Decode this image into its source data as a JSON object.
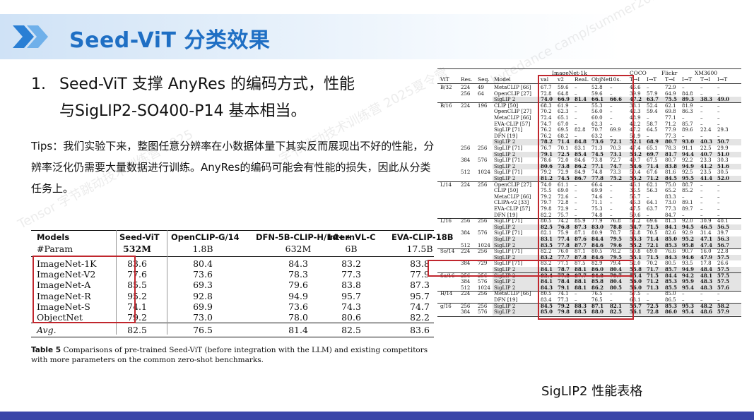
{
  "title": "Seed-ViT 分类效果",
  "watermarks": [
    "bytedance camp/summer2025",
    "字节跳动技术训练营 2025夏令营",
    "Tensor 字节跳动技术训练营 2025"
  ],
  "point": {
    "number": "1.",
    "line1": "Seed-ViT 支撑 AnyRes 的编码方式，性能",
    "line2": "与SigLIP2-SO400-P14 基本相当。"
  },
  "tips": "Tips：我们实验下来，整图任意分辨率在小数据体量下其实反而展现出不好的性能，分辨率泛化仍需要大量数据进行训练。AnyRes的编码可能会有性能的损失，因此从分类任务上。",
  "left_table": {
    "headers": [
      "Models",
      "Seed-ViT",
      "OpenCLIP-G/14",
      "DFN-5B-CLIP-H/14++",
      "InternVL-C",
      "EVA-CLIP-18B"
    ],
    "param_label": "#Param",
    "params": [
      "532M",
      "1.8B",
      "632M",
      "6B",
      "17.5B"
    ],
    "rows": [
      {
        "name": "ImageNet-1K",
        "values": [
          "83.6",
          "80.4",
          "84.3",
          "83.2",
          "83.8"
        ]
      },
      {
        "name": "ImageNet-V2",
        "values": [
          "77.6",
          "73.6",
          "78.3",
          "77.3",
          "77.9"
        ]
      },
      {
        "name": "ImageNet-A",
        "values": [
          "85.5",
          "69.3",
          "79.6",
          "83.8",
          "87.3"
        ]
      },
      {
        "name": "ImageNet-R",
        "values": [
          "95.2",
          "92.8",
          "94.9",
          "95.7",
          "95.7"
        ]
      },
      {
        "name": "ImageNet-S",
        "values": [
          "74.1",
          "69.9",
          "73.6",
          "74.3",
          "74.7"
        ]
      },
      {
        "name": "ObjectNet",
        "values": [
          "79.2",
          "73.0",
          "78.0",
          "80.6",
          "82.2"
        ]
      }
    ],
    "avg": {
      "name": "Avg.",
      "values": [
        "82.5",
        "76.5",
        "81.4",
        "82.5",
        "83.6"
      ]
    },
    "caption_label": "Table 5",
    "caption_text": "Comparisons of pre-trained Seed-ViT (before integration with the LLM) and existing competitors with more parameters on the common zero-shot benchmarks."
  },
  "right_table": {
    "group_headers": [
      "ImageNet-1k",
      "COCO",
      "Flickr",
      "XM3600"
    ],
    "headers": [
      "ViT",
      "Res.",
      "Seq.",
      "Model",
      "val",
      "v2",
      "ReaL",
      "ObjNet",
      "10s.",
      "T→I",
      "I→T",
      "T→I",
      "I→T",
      "T→I",
      "I→T"
    ],
    "rows": [
      [
        "B/32",
        "224",
        "49",
        "MetaCLIP [66]",
        "67.7",
        "59.6",
        "–",
        "52.8",
        "–",
        "46.6",
        "–",
        "72.9",
        "–",
        "–",
        "–"
      ],
      [
        "",
        "256",
        "64",
        "OpenCLIP [27]",
        "72.8",
        "64.8",
        "–",
        "59.6",
        "–",
        "39.9",
        "57.9",
        "64.9",
        "84.8",
        "–",
        "–"
      ],
      [
        "",
        "",
        "",
        "SigLIP 2",
        "74.0",
        "66.9",
        "81.4",
        "66.1",
        "66.6",
        "47.2",
        "63.7",
        "75.5",
        "89.3",
        "38.3",
        "49.0"
      ],
      [
        "B/16",
        "224",
        "196",
        "CLIP [50]",
        "68.3",
        "61.9",
        "–",
        "55.3",
        "–",
        "33.1",
        "52.4",
        "62.1",
        "81.9",
        "–",
        "–"
      ],
      [
        "",
        "",
        "",
        "OpenCLIP [27]",
        "70.2",
        "62.3",
        "–",
        "56.0",
        "–",
        "42.3",
        "59.4",
        "69.8",
        "86.3",
        "–",
        "–"
      ],
      [
        "",
        "",
        "",
        "MetaCLIP [66]",
        "72.4",
        "65.1",
        "–",
        "60.0",
        "–",
        "48.9",
        "–",
        "77.1",
        "–",
        "–",
        "–"
      ],
      [
        "",
        "",
        "",
        "EVA-CLIP [57]",
        "74.7",
        "67.0",
        "–",
        "62.3",
        "–",
        "42.2",
        "58.7",
        "71.2",
        "85.7",
        "–",
        "–"
      ],
      [
        "",
        "",
        "",
        "SigLIP [71]",
        "76.2",
        "69.5",
        "82.8",
        "70.7",
        "69.9",
        "47.2",
        "64.5",
        "77.9",
        "89.6",
        "22.4",
        "29.3"
      ],
      [
        "",
        "",
        "",
        "DFN [19]",
        "76.2",
        "68.2",
        "–",
        "63.2",
        "–",
        "51.9",
        "–",
        "77.3",
        "–",
        "–",
        "–"
      ],
      [
        "",
        "",
        "",
        "SigLIP 2",
        "78.2",
        "71.4",
        "84.8",
        "73.6",
        "72.1",
        "52.1",
        "68.9",
        "80.7",
        "93.0",
        "40.3",
        "50.7"
      ],
      [
        "",
        "256",
        "256",
        "SigLIP [71]",
        "76.7",
        "70.1",
        "83.1",
        "71.3",
        "70.3",
        "47.4",
        "65.1",
        "78.3",
        "91.1",
        "22.5",
        "29.9"
      ],
      [
        "",
        "",
        "",
        "SigLIP 2",
        "79.1",
        "72.5",
        "85.4",
        "74.5",
        "73.1",
        "53.2",
        "69.7",
        "81.7",
        "94.4",
        "40.7",
        "51.0"
      ],
      [
        "",
        "384",
        "576",
        "SigLIP [71]",
        "78.6",
        "72.0",
        "84.6",
        "73.8",
        "72.7",
        "49.7",
        "67.5",
        "80.7",
        "92.2",
        "23.3",
        "30.3"
      ],
      [
        "",
        "",
        "",
        "SigLIP 2",
        "80.6",
        "73.8",
        "86.2",
        "77.1",
        "74.7",
        "54.6",
        "71.4",
        "83.8",
        "94.9",
        "41.2",
        "51.6"
      ],
      [
        "",
        "512",
        "1024",
        "SigLIP [71]",
        "79.2",
        "72.9",
        "84.9",
        "74.8",
        "73.3",
        "50.4",
        "67.6",
        "81.6",
        "92.5",
        "23.5",
        "30.5"
      ],
      [
        "",
        "",
        "",
        "SigLIP 2",
        "81.2",
        "74.5",
        "86.7",
        "77.8",
        "75.2",
        "55.2",
        "71.2",
        "84.5",
        "95.5",
        "41.4",
        "52.0"
      ],
      [
        "L/14",
        "224",
        "256",
        "OpenCLIP [27]",
        "74.0",
        "61.1",
        "–",
        "66.4",
        "–",
        "46.1",
        "62.1",
        "75.0",
        "88.7",
        "–",
        "–"
      ],
      [
        "",
        "",
        "",
        "CLIP [50]",
        "75.5",
        "69.0",
        "–",
        "69.9",
        "–",
        "36.5",
        "56.3",
        "65.2",
        "85.2",
        "–",
        "–"
      ],
      [
        "",
        "",
        "",
        "MetaCLIP [66]",
        "79.2",
        "72.6",
        "–",
        "74.6",
        "–",
        "55.7",
        "–",
        "83.3",
        "–",
        "–",
        "–"
      ],
      [
        "",
        "",
        "",
        "CLIPA-v2 [33]",
        "79.7",
        "72.8",
        "–",
        "71.1",
        "–",
        "46.3",
        "64.1",
        "73.0",
        "89.1",
        "–",
        "–"
      ],
      [
        "",
        "",
        "",
        "EVA-CLIP [57]",
        "79.8",
        "72.9",
        "–",
        "75.3",
        "–",
        "47.5",
        "63.7",
        "77.3",
        "89.7",
        "–",
        "–"
      ],
      [
        "",
        "",
        "",
        "DFN [19]",
        "82.2",
        "75.7",
        "–",
        "74.8",
        "–",
        "59.6",
        "–",
        "84.7",
        "–",
        "–",
        "–"
      ],
      [
        "L/16",
        "256",
        "256",
        "SigLIP [71]",
        "80.5",
        "74.2",
        "85.9",
        "77.9",
        "76.8",
        "51.2",
        "69.6",
        "81.3",
        "92.0",
        "30.9",
        "40.1"
      ],
      [
        "",
        "",
        "",
        "SigLIP 2",
        "82.5",
        "76.8",
        "87.3",
        "83.0",
        "78.8",
        "54.7",
        "71.5",
        "84.1",
        "94.5",
        "46.5",
        "56.5"
      ],
      [
        "",
        "384",
        "576",
        "SigLIP [71]",
        "82.1",
        "75.9",
        "87.1",
        "80.9",
        "78.7",
        "52.8",
        "70.5",
        "82.6",
        "92.9",
        "31.4",
        "39.7"
      ],
      [
        "",
        "",
        "",
        "SigLIP 2",
        "83.1",
        "77.4",
        "87.6",
        "84.4",
        "79.5",
        "55.3",
        "71.4",
        "85.0",
        "95.2",
        "47.1",
        "56.3"
      ],
      [
        "",
        "512",
        "1024",
        "SigLIP 2",
        "83.5",
        "77.8",
        "87.7",
        "84.6",
        "79.6",
        "55.2",
        "72.1",
        "85.3",
        "95.8",
        "47.4",
        "56.7"
      ],
      [
        "So/14",
        "224",
        "256",
        "SigLIP [71]",
        "82.2",
        "76.0",
        "87.1",
        "80.5",
        "78.2",
        "50.8",
        "69.0",
        "76.6",
        "90.7",
        "16.0",
        "22.8"
      ],
      [
        "",
        "",
        "",
        "SigLIP 2",
        "83.2",
        "77.7",
        "87.8",
        "84.6",
        "79.5",
        "55.1",
        "71.5",
        "84.3",
        "94.6",
        "47.9",
        "57.5"
      ],
      [
        "",
        "384",
        "729",
        "SigLIP [71]",
        "83.2",
        "77.1",
        "87.5",
        "82.9",
        "79.4",
        "52.0",
        "70.2",
        "80.5",
        "93.5",
        "17.8",
        "26.6"
      ],
      [
        "",
        "",
        "",
        "SigLIP 2",
        "84.1",
        "78.7",
        "88.1",
        "86.0",
        "80.4",
        "55.8",
        "71.7",
        "85.7",
        "94.9",
        "48.4",
        "57.5"
      ],
      [
        "So/16",
        "256",
        "256",
        "SigLIP 2",
        "83.4",
        "77.8",
        "87.7",
        "84.8",
        "79.7",
        "55.4",
        "71.5",
        "84.4",
        "94.2",
        "48.1",
        "57.5"
      ],
      [
        "",
        "384",
        "576",
        "SigLIP 2",
        "84.1",
        "78.4",
        "88.1",
        "85.8",
        "80.4",
        "56.0",
        "71.2",
        "85.3",
        "95.9",
        "48.3",
        "57.5"
      ],
      [
        "",
        "512",
        "1024",
        "SigLIP 2",
        "84.3",
        "79.1",
        "88.1",
        "86.2",
        "80.5",
        "56.0",
        "71.3",
        "85.5",
        "95.4",
        "48.3",
        "57.6"
      ],
      [
        "H/14",
        "224",
        "256",
        "MetaCLIP [66]",
        "80.5",
        "74.1",
        "–",
        "76.5",
        "–",
        "57.5",
        "–",
        "85.0",
        "–",
        "–",
        "–"
      ],
      [
        "",
        "",
        "",
        "DFN [19]",
        "83.4",
        "77.3",
        "–",
        "76.5",
        "–",
        "63.1",
        "–",
        "86.5",
        "–",
        "–",
        "–"
      ],
      [
        "g/16",
        "256",
        "256",
        "SigLIP 2",
        "84.5",
        "79.2",
        "88.3",
        "87.1",
        "82.1",
        "55.7",
        "72.5",
        "85.3",
        "95.3",
        "48.2",
        "58.2"
      ],
      [
        "",
        "384",
        "576",
        "SigLIP 2",
        "85.0",
        "79.8",
        "88.5",
        "88.0",
        "82.5",
        "56.1",
        "72.8",
        "86.0",
        "95.4",
        "48.6",
        "57.9"
      ]
    ],
    "caption": "SigLIP2 性能表格"
  },
  "colors": {
    "title": "#1f6fc4",
    "highlight_box": "#c0262d",
    "bottom_bar": "#3a46a8"
  }
}
